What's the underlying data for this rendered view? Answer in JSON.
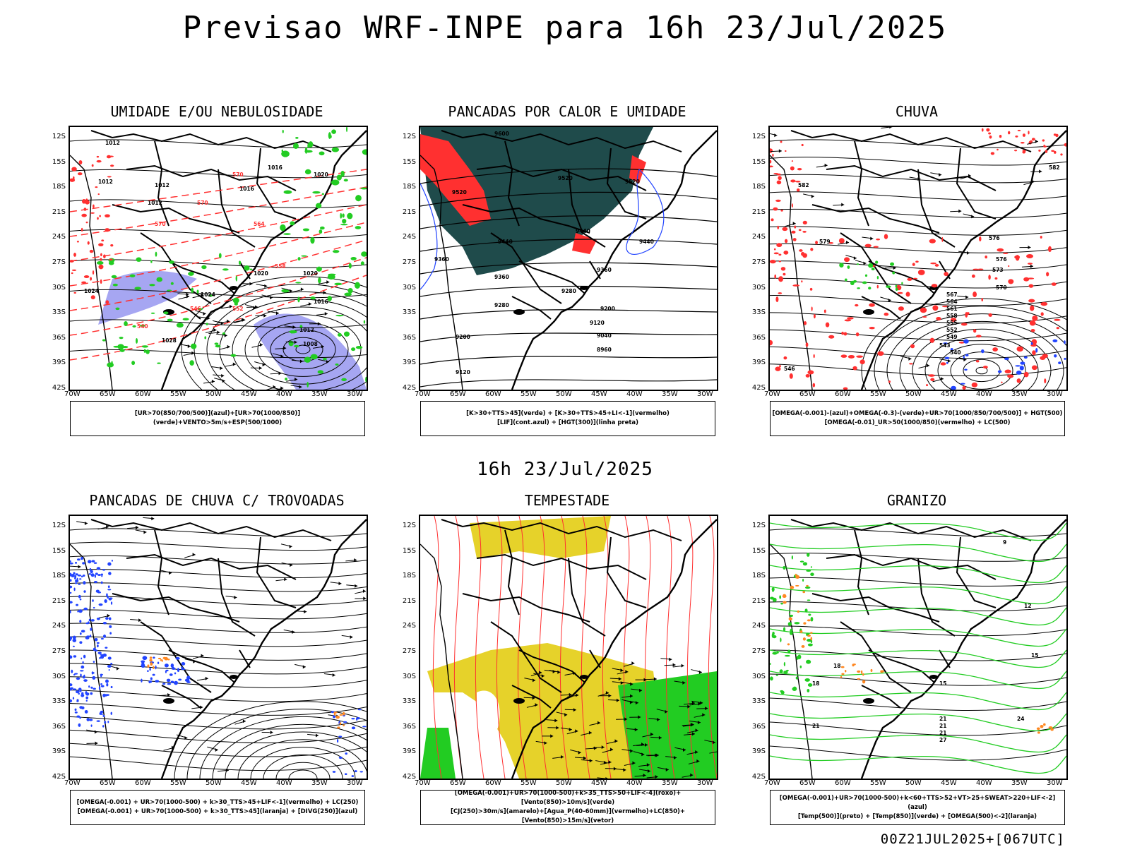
{
  "header": {
    "title": "Previsao WRF-INPE  para 16h 23/Jul/2025"
  },
  "middle": {
    "title": "16h 23/Jul/2025"
  },
  "footer": {
    "run": "00Z21JUL2025+[067UTC]"
  },
  "axes": {
    "lat": [
      "12S",
      "15S",
      "18S",
      "21S",
      "24S",
      "27S",
      "30S",
      "33S",
      "36S",
      "39S",
      "42S"
    ],
    "lon": [
      "70W",
      "65W",
      "60W",
      "55W",
      "50W",
      "45W",
      "40W",
      "35W",
      "30W"
    ]
  },
  "colors": {
    "red": "#ff3030",
    "green": "#22cc22",
    "blue": "#2244ff",
    "darkteal": "#1f4b4b",
    "yellow": "#e6d22a",
    "orange": "#ff8822",
    "lavender": "#a6a6f2"
  },
  "panels": [
    {
      "title": "UMIDADE E/OU NEBULOSIDADE",
      "legend": [
        "[UR>70(850/700/500)](azul)+[UR>70(1000/850)](verde)+VENTO>5m/s+ESP(500/1000)"
      ],
      "labels": [
        "1012",
        "1012",
        "1012",
        "1012",
        "1016",
        "1016",
        "1020",
        "1020",
        "1020",
        "1024",
        "1016",
        "1012",
        "1008",
        "570",
        "570",
        "570",
        "564",
        "558",
        "552",
        "546",
        "540",
        "1028",
        "1024"
      ]
    },
    {
      "title": "PANCADAS POR CALOR E UMIDADE",
      "legend": [
        "[K>30+TTS>45](verde) + [K>30+TTS>45+LI<-1](vermelho)",
        "[LIF](cont.azul) + [HGT(300)](linha preta)"
      ],
      "labels": [
        "9600",
        "9520",
        "9520",
        "9520",
        "9440",
        "9440",
        "9440",
        "9360",
        "9360",
        "9360",
        "9280",
        "9280",
        "9200",
        "9200",
        "9120",
        "9120",
        "9040",
        "8960"
      ]
    },
    {
      "title": "CHUVA",
      "legend": [
        "[OMEGA(-0.001)-(azul)+OMEGA(-0.3)-(verde)+UR>70(1000/850/700/500)] + HGT(500)",
        "[OMEGA(-0.01)_UR>50(1000/850)(vermelho) + LC(500)"
      ],
      "labels": [
        "582",
        "582",
        "579",
        "576",
        "576",
        "573",
        "570",
        "567",
        "564",
        "561",
        "558",
        "555",
        "552",
        "549",
        "546",
        "543",
        "540"
      ]
    },
    {
      "title": "PANCADAS DE CHUVA C/ TROVOADAS",
      "legend": [
        "[OMEGA(-0.001) + UR>70(1000-500) + k>30_TTS>45+LIF<-1](vermelho) + LC(250)",
        "[OMEGA(-0.001) + UR>70(1000-500) + k>30_TTS>45](laranja) + [DIVG(250)](azul)"
      ],
      "labels": []
    },
    {
      "title": "TEMPESTADE",
      "legend": [
        "[OMEGA(-0.001)+UR>70(1000-500)+k>35_TTS>50+LIF<-4](roxo)+[Vento(850)>10m/s](verde)",
        "[CJ(250)>30m/s](amarelo)+[Agua_P(40-60mm)](vermelho)+LC(850)+[Vento(850)>15m/s](vetor)"
      ],
      "labels": []
    },
    {
      "title": "GRANIZO",
      "legend": [
        "[OMEGA(-0.001)+UR>70(1000-500)+k<60+TTS>52+VT>25+SWEAT>220+LIF<-2](azul)",
        "[Temp(500)](preto) + [Temp(850)](verde) + [OMEGA(500)<-2](laranja)"
      ],
      "labels": [
        "9",
        "12",
        "15",
        "18",
        "15",
        "18",
        "21",
        "21",
        "21",
        "21",
        "27",
        "24"
      ]
    }
  ]
}
